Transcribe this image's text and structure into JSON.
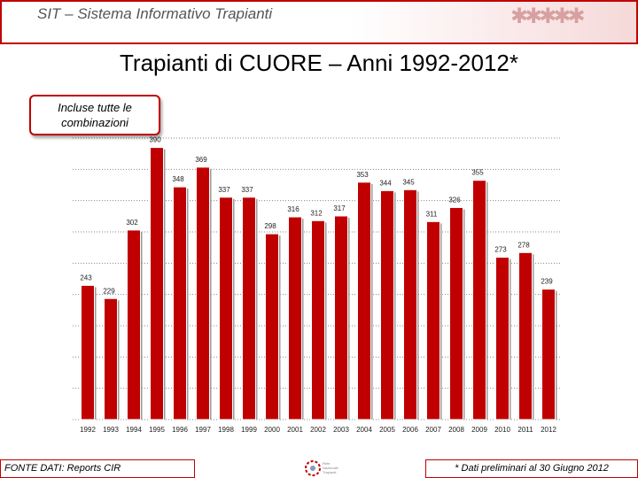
{
  "header": {
    "title": "SIT – Sistema Informativo Trapianti",
    "people_glyphs": "✱✱✱✱✱"
  },
  "note": "Incluse tutte le combinazioni",
  "footer": {
    "source": "FONTE DATI:  Reports CIR",
    "footnote": "* Dati  preliminari al 30 Giugno 2012",
    "logo_text": "Rete Nazionale Trapianti"
  },
  "colors": {
    "bar": "#c00000",
    "accent": "#c00000"
  },
  "chart_data": {
    "type": "bar",
    "title": "Trapianti di CUORE – Anni 1992-2012*",
    "categories": [
      "1992",
      "1993",
      "1994",
      "1995",
      "1996",
      "1997",
      "1998",
      "1999",
      "2000",
      "2001",
      "2002",
      "2003",
      "2004",
      "2005",
      "2006",
      "2007",
      "2008",
      "2009",
      "2010",
      "2011",
      "2012"
    ],
    "values": [
      243,
      229,
      302,
      390,
      348,
      369,
      337,
      337,
      298,
      316,
      312,
      317,
      353,
      344,
      345,
      311,
      326,
      355,
      273,
      278,
      239
    ],
    "ylim": [
      100,
      400
    ],
    "grid": true,
    "data_labels": true
  }
}
